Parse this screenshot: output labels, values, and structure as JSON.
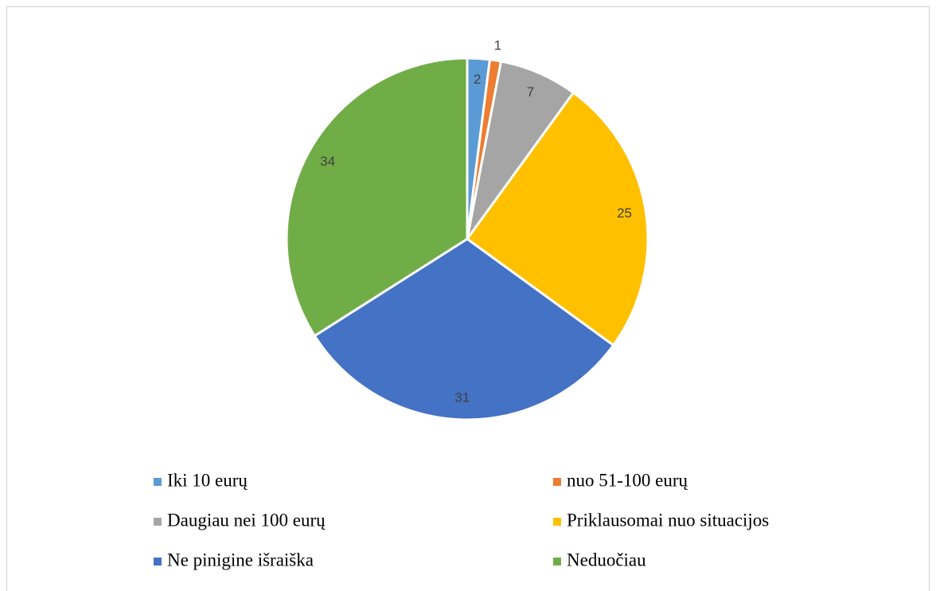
{
  "chart_data": {
    "type": "pie",
    "categories": [
      "Iki 10 eurų",
      "nuo 51-100 eurų",
      "Daugiau nei 100 eurų",
      "Priklausomai nuo situacijos",
      "Ne pinigine išraiška",
      "Neduočiau"
    ],
    "values": [
      2,
      1,
      7,
      25,
      31,
      34
    ],
    "colors": [
      "#5b9bd5",
      "#ed7d31",
      "#a5a5a5",
      "#ffc000",
      "#4472c4",
      "#70ad47"
    ],
    "legend": "bottom"
  }
}
